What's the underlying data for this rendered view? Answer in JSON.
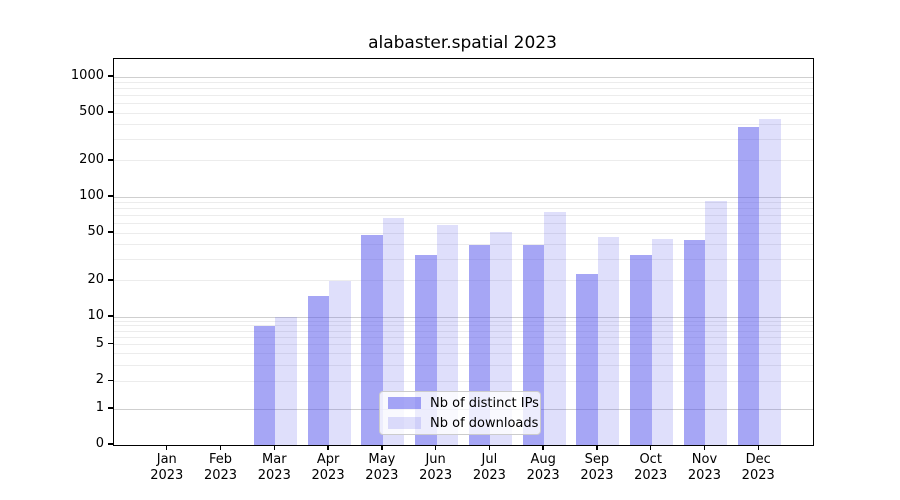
{
  "title": "alabaster.spatial 2023",
  "chart_data": {
    "type": "bar",
    "title": "alabaster.spatial 2023",
    "categories": [
      "Jan",
      "Feb",
      "Mar",
      "Apr",
      "May",
      "Jun",
      "Jul",
      "Aug",
      "Sep",
      "Oct",
      "Nov",
      "Dec"
    ],
    "year_label": "2023",
    "series": [
      {
        "name": "Nb of distinct IPs",
        "color": "rgba(85,85,235,0.52)",
        "values": [
          0,
          0,
          8,
          15,
          48,
          33,
          40,
          40,
          23,
          33,
          44,
          380
        ]
      },
      {
        "name": "Nb of downloads",
        "color": "rgba(85,85,235,0.19)",
        "values": [
          0,
          0,
          10,
          20,
          67,
          58,
          51,
          75,
          46,
          45,
          93,
          450
        ]
      }
    ],
    "xlabel": "",
    "ylabel": "",
    "yscale": "symlog",
    "y_major_ticks": [
      0,
      1,
      2,
      5,
      10,
      20,
      50,
      100,
      200,
      500,
      1000
    ],
    "ylim": [
      0,
      1400
    ],
    "grid": "on",
    "legend_position": "lower-center",
    "colors": {
      "bar_dark_on_white": "#a7a7f5",
      "bar_light_on_white": "#dedef9",
      "major_gridline": "#cfcfcf",
      "minor_gridline": "#ececec",
      "axis": "#000000"
    }
  }
}
